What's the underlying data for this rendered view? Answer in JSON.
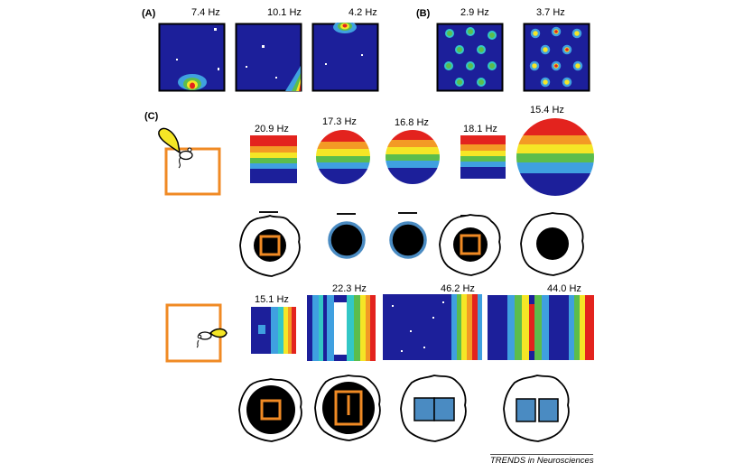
{
  "panels": {
    "a_label": "(A)",
    "b_label": "(B)",
    "c_label": "(C)"
  },
  "panel_a": {
    "rates": [
      "7.4 Hz",
      "10.1 Hz",
      "4.2 Hz"
    ]
  },
  "panel_b": {
    "rates": [
      "2.9 Hz",
      "3.7 Hz"
    ]
  },
  "panel_c": {
    "row1_rates": [
      "20.9 Hz",
      "17.3 Hz",
      "16.8 Hz",
      "18.1 Hz",
      "15.4 Hz"
    ],
    "row2_rates": [
      "15.1 Hz",
      "22.3 Hz",
      "46.2 Hz",
      "44.0 Hz"
    ]
  },
  "footer": "TRENDS in Neurosciences",
  "colors": {
    "blue": "#1c1f9a",
    "light_blue": "#3fa0e0",
    "cyan": "#33c7c6",
    "green": "#5cbd4c",
    "yellow": "#f5e626",
    "orange": "#f39a25",
    "red": "#e3231e",
    "box_orange": "#f08a24",
    "arena_blue": "#4a8bc2"
  }
}
